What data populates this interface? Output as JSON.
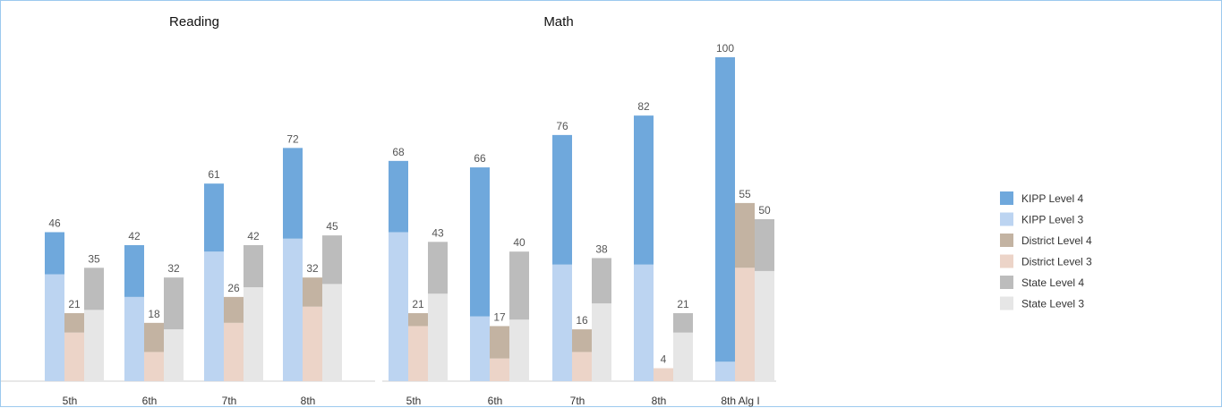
{
  "colors": {
    "kipp_level_4": "#6fa8dc",
    "kipp_level_3": "#bcd4f1",
    "district_level_4": "#c3b3a2",
    "district_level_3": "#ecd4c8",
    "state_level_4": "#bcbcbc",
    "state_level_3": "#e6e6e6"
  },
  "chart_data": [
    {
      "type": "bar",
      "stacked_groups": true,
      "title": "Reading",
      "categories": [
        "5th",
        "6th",
        "7th",
        "8th"
      ],
      "ylim": [
        0,
        100
      ],
      "series": [
        {
          "name": "KIPP Level 4",
          "group": "KIPP",
          "values": [
            13,
            16,
            21,
            28
          ]
        },
        {
          "name": "KIPP Level 3",
          "group": "KIPP",
          "values": [
            33,
            26,
            40,
            44
          ]
        },
        {
          "name": "District Level 4",
          "group": "District",
          "values": [
            6,
            9,
            8,
            9
          ]
        },
        {
          "name": "District Level 3",
          "group": "District",
          "values": [
            15,
            9,
            18,
            23
          ]
        },
        {
          "name": "State Level 4",
          "group": "State",
          "values": [
            13,
            16,
            13,
            15
          ]
        },
        {
          "name": "State Level 3",
          "group": "State",
          "values": [
            22,
            16,
            29,
            30
          ]
        }
      ],
      "totals": {
        "KIPP": [
          46,
          42,
          61,
          72
        ],
        "District": [
          21,
          18,
          26,
          32
        ],
        "State": [
          35,
          32,
          42,
          45
        ]
      }
    },
    {
      "type": "bar",
      "stacked_groups": true,
      "title": "Math",
      "categories": [
        "5th",
        "6th",
        "7th",
        "8th",
        "8th Alg I"
      ],
      "ylim": [
        0,
        100
      ],
      "series": [
        {
          "name": "KIPP Level 4",
          "group": "KIPP",
          "values": [
            22,
            46,
            40,
            46,
            94
          ]
        },
        {
          "name": "KIPP Level 3",
          "group": "KIPP",
          "values": [
            46,
            20,
            36,
            36,
            6
          ]
        },
        {
          "name": "District Level 4",
          "group": "District",
          "values": [
            4,
            10,
            7,
            0,
            20
          ]
        },
        {
          "name": "District Level 3",
          "group": "District",
          "values": [
            17,
            7,
            9,
            4,
            35
          ]
        },
        {
          "name": "State Level 4",
          "group": "State",
          "values": [
            16,
            21,
            14,
            6,
            16
          ]
        },
        {
          "name": "State Level 3",
          "group": "State",
          "values": [
            27,
            19,
            24,
            15,
            34
          ]
        }
      ],
      "totals": {
        "KIPP": [
          68,
          66,
          76,
          82,
          100
        ],
        "District": [
          21,
          17,
          16,
          4,
          55
        ],
        "State": [
          43,
          40,
          38,
          21,
          50
        ]
      }
    }
  ],
  "legend": {
    "placement": "right",
    "items": [
      {
        "label": "KIPP Level 4",
        "color_key": "kipp_level_4"
      },
      {
        "label": "KIPP Level 3",
        "color_key": "kipp_level_3"
      },
      {
        "label": "District Level 4",
        "color_key": "district_level_4"
      },
      {
        "label": "District Level 3",
        "color_key": "district_level_3"
      },
      {
        "label": "State Level 4",
        "color_key": "state_level_4"
      },
      {
        "label": "State Level 3",
        "color_key": "state_level_3"
      }
    ]
  }
}
